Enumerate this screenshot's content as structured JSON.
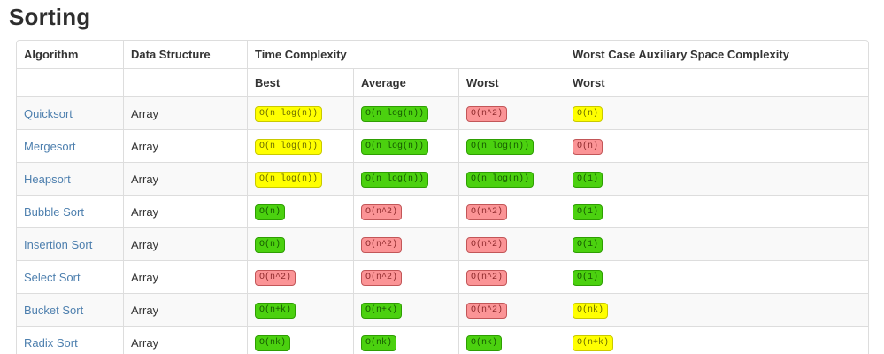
{
  "page": {
    "title": "Sorting"
  },
  "table": {
    "header": {
      "algorithm": "Algorithm",
      "data_structure": "Data Structure",
      "time_complexity": "Time Complexity",
      "space_complexity": "Worst Case Auxiliary Space Complexity",
      "sub_best": "Best",
      "sub_average": "Average",
      "sub_worst": "Worst",
      "sub_space_worst": "Worst"
    },
    "link_color": "#4d7fae",
    "badge_colors": {
      "yellow": {
        "bg": "#ffff00",
        "border": "#c9c900",
        "text": "#6b6b00"
      },
      "green": {
        "bg": "#4bd10f",
        "border": "#2e9e02",
        "text": "#155800"
      },
      "red": {
        "bg": "#fb9496",
        "border": "#c25658",
        "text": "#8f2a2c"
      }
    },
    "rows": [
      {
        "algorithm": "Quicksort",
        "data_structure": "Array",
        "best": {
          "text": "O(n log(n))",
          "level": "yellow"
        },
        "average": {
          "text": "O(n log(n))",
          "level": "green"
        },
        "worst": {
          "text": "O(n^2)",
          "level": "red"
        },
        "space": {
          "text": "O(n)",
          "level": "yellow"
        }
      },
      {
        "algorithm": "Mergesort",
        "data_structure": "Array",
        "best": {
          "text": "O(n log(n))",
          "level": "yellow"
        },
        "average": {
          "text": "O(n log(n))",
          "level": "green"
        },
        "worst": {
          "text": "O(n log(n))",
          "level": "green"
        },
        "space": {
          "text": "O(n)",
          "level": "red"
        }
      },
      {
        "algorithm": "Heapsort",
        "data_structure": "Array",
        "best": {
          "text": "O(n log(n))",
          "level": "yellow"
        },
        "average": {
          "text": "O(n log(n))",
          "level": "green"
        },
        "worst": {
          "text": "O(n log(n))",
          "level": "green"
        },
        "space": {
          "text": "O(1)",
          "level": "green"
        }
      },
      {
        "algorithm": "Bubble Sort",
        "data_structure": "Array",
        "best": {
          "text": "O(n)",
          "level": "green"
        },
        "average": {
          "text": "O(n^2)",
          "level": "red"
        },
        "worst": {
          "text": "O(n^2)",
          "level": "red"
        },
        "space": {
          "text": "O(1)",
          "level": "green"
        }
      },
      {
        "algorithm": "Insertion Sort",
        "data_structure": "Array",
        "best": {
          "text": "O(n)",
          "level": "green"
        },
        "average": {
          "text": "O(n^2)",
          "level": "red"
        },
        "worst": {
          "text": "O(n^2)",
          "level": "red"
        },
        "space": {
          "text": "O(1)",
          "level": "green"
        }
      },
      {
        "algorithm": "Select Sort",
        "data_structure": "Array",
        "best": {
          "text": "O(n^2)",
          "level": "red"
        },
        "average": {
          "text": "O(n^2)",
          "level": "red"
        },
        "worst": {
          "text": "O(n^2)",
          "level": "red"
        },
        "space": {
          "text": "O(1)",
          "level": "green"
        }
      },
      {
        "algorithm": "Bucket Sort",
        "data_structure": "Array",
        "best": {
          "text": "O(n+k)",
          "level": "green"
        },
        "average": {
          "text": "O(n+k)",
          "level": "green"
        },
        "worst": {
          "text": "O(n^2)",
          "level": "red"
        },
        "space": {
          "text": "O(nk)",
          "level": "yellow"
        }
      },
      {
        "algorithm": "Radix Sort",
        "data_structure": "Array",
        "best": {
          "text": "O(nk)",
          "level": "green"
        },
        "average": {
          "text": "O(nk)",
          "level": "green"
        },
        "worst": {
          "text": "O(nk)",
          "level": "green"
        },
        "space": {
          "text": "O(n+k)",
          "level": "yellow"
        }
      }
    ]
  }
}
